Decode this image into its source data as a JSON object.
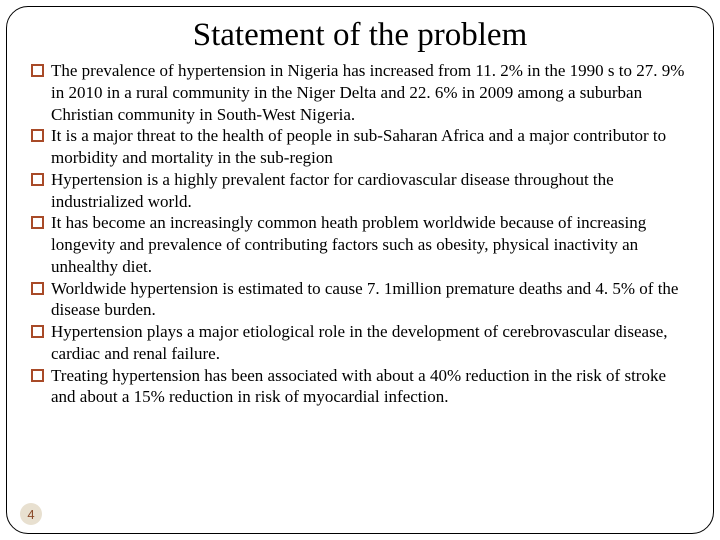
{
  "title": "Statement of the problem",
  "bullets": [
    "The prevalence of hypertension in Nigeria has increased from 11. 2% in the 1990 s to 27. 9% in 2010 in a rural community in the Niger Delta and 22. 6% in 2009 among a suburban Christian community in South-West Nigeria.",
    " It is a major threat to the health of people in sub-Saharan Africa and a major contributor to morbidity and mortality in the sub-region",
    "Hypertension is a highly prevalent factor for cardiovascular disease throughout the industrialized world.",
    "It has become an increasingly common heath problem worldwide because of increasing longevity and prevalence of contributing factors such as obesity, physical inactivity an unhealthy diet.",
    " Worldwide hypertension is estimated to cause 7. 1million premature deaths and 4. 5% of the disease burden.",
    "Hypertension plays a major etiological role in the development of cerebrovascular disease, cardiac and renal failure.",
    "Treating hypertension has been associated with about a 40% reduction in the risk of stroke and about a 15% reduction in risk of myocardial infection."
  ],
  "pageNumber": "4",
  "colors": {
    "bulletBorder": "#a84a28",
    "pageBadgeBg": "#e8e0d0",
    "pageBadgeText": "#8a4a2a"
  }
}
